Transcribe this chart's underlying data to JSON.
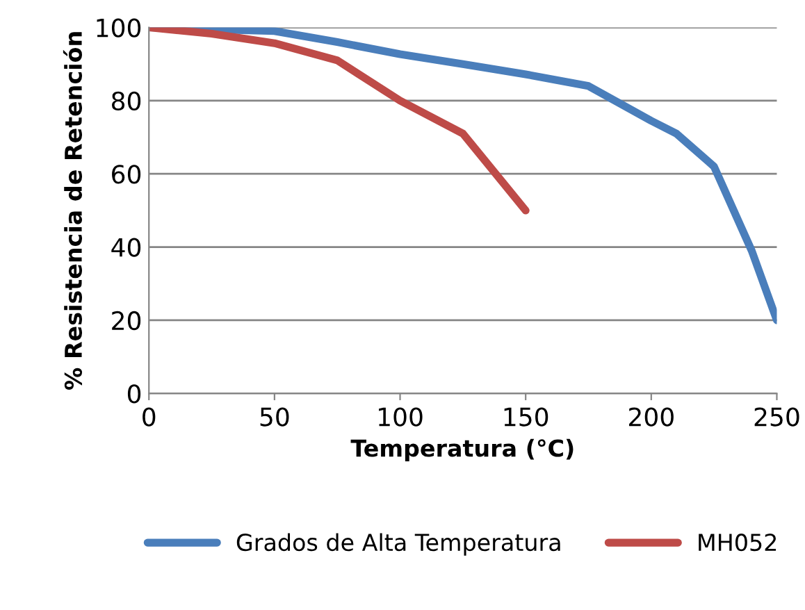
{
  "chart_data": {
    "type": "line",
    "xlabel": "Temperatura (°C)",
    "ylabel": "% Resistencia de Retención",
    "xlim": [
      0,
      250
    ],
    "xticks": [
      0,
      50,
      100,
      150,
      200,
      250
    ],
    "ylim": [
      0,
      100
    ],
    "yticks": [
      0,
      20,
      40,
      60,
      80,
      100
    ],
    "grid": "y",
    "legend": "bottom",
    "line_style": "solid",
    "marker": "none",
    "series": [
      {
        "name": "Grados de Alta Temperatura",
        "color": "#4a7ebb",
        "x": [
          0,
          25,
          50,
          75,
          100,
          125,
          150,
          175,
          200,
          210,
          225,
          240,
          250
        ],
        "values": [
          100,
          99.5,
          99,
          96,
          92.7,
          90,
          87.2,
          84,
          74.5,
          71,
          62,
          39,
          20
        ]
      },
      {
        "name": "MH052",
        "color": "#be4b48",
        "x": [
          0,
          25,
          50,
          75,
          100,
          125,
          150
        ],
        "values": [
          100,
          98.3,
          95.7,
          91,
          80,
          71,
          50
        ]
      }
    ]
  }
}
